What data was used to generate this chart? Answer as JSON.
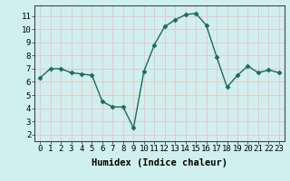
{
  "x": [
    0,
    1,
    2,
    3,
    4,
    5,
    6,
    7,
    8,
    9,
    10,
    11,
    12,
    13,
    14,
    15,
    16,
    17,
    18,
    19,
    20,
    21,
    22,
    23
  ],
  "y": [
    6.3,
    7.0,
    7.0,
    6.7,
    6.6,
    6.5,
    4.5,
    4.1,
    4.1,
    2.5,
    6.8,
    8.8,
    10.2,
    10.7,
    11.1,
    11.2,
    10.3,
    7.9,
    5.6,
    6.5,
    7.2,
    6.7,
    6.9,
    6.7
  ],
  "line_color": "#1a6b5a",
  "marker": "D",
  "marker_size": 2.5,
  "bg_color": "#cff0ee",
  "grid_color": "#e8c8c8",
  "xlabel": "Humidex (Indice chaleur)",
  "xlim": [
    -0.5,
    23.5
  ],
  "ylim": [
    1.5,
    11.8
  ],
  "yticks": [
    2,
    3,
    4,
    5,
    6,
    7,
    8,
    9,
    10,
    11
  ],
  "xticks": [
    0,
    1,
    2,
    3,
    4,
    5,
    6,
    7,
    8,
    9,
    10,
    11,
    12,
    13,
    14,
    15,
    16,
    17,
    18,
    19,
    20,
    21,
    22,
    23
  ],
  "tick_label_fontsize": 6.5,
  "xlabel_fontsize": 7.5,
  "linewidth": 1.0
}
